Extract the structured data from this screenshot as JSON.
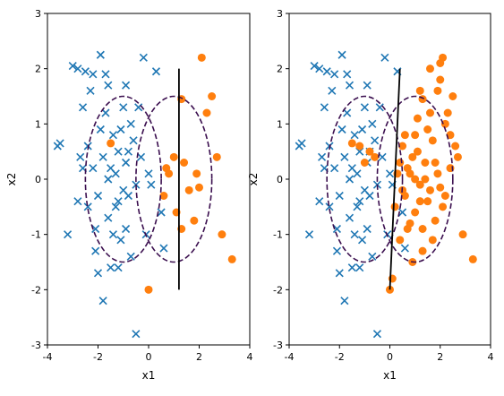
{
  "colors": {
    "class_x": "#1f77b4",
    "class_o": "#ff7f0e",
    "ellipse": "#3b0f4f",
    "boundary": "#000000"
  },
  "chart_data": [
    {
      "type": "scatter",
      "xlabel": "x1",
      "ylabel": "x2",
      "xlim": [
        -4,
        4
      ],
      "ylim": [
        -3,
        3
      ],
      "xticks": [
        "-4",
        "-2",
        "0",
        "2",
        "4"
      ],
      "yticks": [
        "-3",
        "-2",
        "-1",
        "0",
        "1",
        "2",
        "3"
      ],
      "series": [
        {
          "marker": "x",
          "points": [
            [
              -3.6,
              0.6
            ],
            [
              -3.5,
              0.65
            ],
            [
              -3.2,
              -1.0
            ],
            [
              -3.0,
              2.05
            ],
            [
              -2.8,
              2.0
            ],
            [
              -2.7,
              0.4
            ],
            [
              -2.6,
              0.2
            ],
            [
              -2.5,
              1.95
            ],
            [
              -2.4,
              -0.5
            ],
            [
              -2.3,
              1.6
            ],
            [
              -2.2,
              1.9
            ],
            [
              -2.1,
              -1.3
            ],
            [
              -2.0,
              -1.7
            ],
            [
              -1.9,
              2.25
            ],
            [
              -1.8,
              -2.2
            ],
            [
              -1.7,
              1.9
            ],
            [
              -1.6,
              1.7
            ],
            [
              -1.5,
              -1.6
            ],
            [
              -1.4,
              0.8
            ],
            [
              -1.3,
              0.1
            ],
            [
              -1.2,
              -0.4
            ],
            [
              -1.1,
              0.9
            ],
            [
              -1.0,
              -0.2
            ],
            [
              -0.9,
              -0.9
            ],
            [
              -0.8,
              0.5
            ],
            [
              -0.7,
              -1.4
            ],
            [
              -0.5,
              -2.8
            ],
            [
              -0.4,
              1.3
            ],
            [
              -0.2,
              2.2
            ],
            [
              -0.1,
              -1.0
            ],
            [
              0.1,
              -0.1
            ],
            [
              0.3,
              1.95
            ],
            [
              0.5,
              -0.6
            ],
            [
              0.6,
              -1.25
            ],
            [
              -2.2,
              0.2
            ],
            [
              -2.0,
              -0.3
            ],
            [
              -1.8,
              0.4
            ],
            [
              -1.6,
              -0.7
            ],
            [
              -1.5,
              0.2
            ],
            [
              -1.3,
              -0.5
            ],
            [
              -1.2,
              0.5
            ],
            [
              -1.1,
              -1.1
            ],
            [
              -0.9,
              0.3
            ],
            [
              -0.8,
              -0.3
            ],
            [
              -0.6,
              0.7
            ],
            [
              -0.5,
              -0.1
            ],
            [
              -1.7,
              1.2
            ],
            [
              -1.9,
              0.9
            ],
            [
              -2.6,
              1.3
            ],
            [
              -1.4,
              -1.0
            ],
            [
              -0.7,
              1.0
            ],
            [
              -1.0,
              1.3
            ],
            [
              -2.1,
              -0.9
            ],
            [
              -0.3,
              0.4
            ],
            [
              0.0,
              0.1
            ],
            [
              -2.4,
              0.6
            ],
            [
              -1.2,
              -1.6
            ],
            [
              -0.9,
              1.7
            ],
            [
              -2.8,
              -0.4
            ],
            [
              -1.6,
              0.0
            ]
          ]
        },
        {
          "marker": "o",
          "points": [
            [
              -1.5,
              0.65
            ],
            [
              0.0,
              -2.0
            ],
            [
              0.6,
              -0.3
            ],
            [
              0.8,
              0.1
            ],
            [
              1.0,
              0.4
            ],
            [
              1.1,
              -0.6
            ],
            [
              1.3,
              1.45
            ],
            [
              1.3,
              -0.9
            ],
            [
              1.4,
              0.3
            ],
            [
              1.6,
              -0.2
            ],
            [
              1.8,
              -0.75
            ],
            [
              1.9,
              0.1
            ],
            [
              2.0,
              -0.15
            ],
            [
              2.1,
              2.2
            ],
            [
              2.3,
              1.2
            ],
            [
              2.5,
              1.5
            ],
            [
              2.7,
              0.4
            ],
            [
              2.9,
              -1.0
            ],
            [
              3.3,
              -1.45
            ],
            [
              0.7,
              0.2
            ]
          ]
        }
      ],
      "ellipses": [
        {
          "center": [
            -1.0,
            0.0
          ],
          "rx": 1.5,
          "ry": 1.5
        },
        {
          "center": [
            1.0,
            0.0
          ],
          "rx": 1.5,
          "ry": 1.5
        }
      ],
      "boundary": [
        [
          1.2,
          -2.0
        ],
        [
          1.2,
          2.0
        ]
      ]
    },
    {
      "type": "scatter",
      "xlabel": "x1",
      "ylabel": "x2",
      "xlim": [
        -4,
        4
      ],
      "ylim": [
        -3,
        3
      ],
      "xticks": [
        "-4",
        "-2",
        "0",
        "2",
        "4"
      ],
      "yticks": [
        "-3",
        "-2",
        "-1",
        "0",
        "1",
        "2",
        "3"
      ],
      "series": [
        {
          "marker": "x",
          "points": [
            [
              -3.6,
              0.6
            ],
            [
              -3.5,
              0.65
            ],
            [
              -3.2,
              -1.0
            ],
            [
              -3.0,
              2.05
            ],
            [
              -2.8,
              2.0
            ],
            [
              -2.7,
              0.4
            ],
            [
              -2.6,
              0.2
            ],
            [
              -2.5,
              1.95
            ],
            [
              -2.4,
              -0.5
            ],
            [
              -2.3,
              1.6
            ],
            [
              -2.2,
              1.9
            ],
            [
              -2.1,
              -1.3
            ],
            [
              -2.0,
              -1.7
            ],
            [
              -1.9,
              2.25
            ],
            [
              -1.8,
              -2.2
            ],
            [
              -1.7,
              1.9
            ],
            [
              -1.6,
              1.7
            ],
            [
              -1.5,
              -1.6
            ],
            [
              -1.4,
              0.8
            ],
            [
              -1.3,
              0.1
            ],
            [
              -1.2,
              -0.4
            ],
            [
              -1.1,
              0.9
            ],
            [
              -1.0,
              -0.2
            ],
            [
              -0.9,
              -0.9
            ],
            [
              -0.8,
              0.5
            ],
            [
              -0.7,
              -1.4
            ],
            [
              -0.5,
              -2.8
            ],
            [
              -0.4,
              1.3
            ],
            [
              -0.2,
              2.2
            ],
            [
              -0.1,
              -1.0
            ],
            [
              0.1,
              -0.1
            ],
            [
              0.3,
              1.95
            ],
            [
              0.5,
              -0.6
            ],
            [
              0.6,
              -1.25
            ],
            [
              -2.2,
              0.2
            ],
            [
              -2.0,
              -0.3
            ],
            [
              -1.8,
              0.4
            ],
            [
              -1.6,
              -0.7
            ],
            [
              -1.5,
              0.2
            ],
            [
              -1.3,
              -0.5
            ],
            [
              -1.2,
              0.5
            ],
            [
              -1.1,
              -1.1
            ],
            [
              -0.9,
              0.3
            ],
            [
              -0.8,
              -0.3
            ],
            [
              -0.6,
              0.7
            ],
            [
              -0.5,
              -0.1
            ],
            [
              -1.7,
              1.2
            ],
            [
              -1.9,
              0.9
            ],
            [
              -2.6,
              1.3
            ],
            [
              -1.4,
              -1.0
            ],
            [
              -0.7,
              1.0
            ],
            [
              -1.0,
              1.3
            ],
            [
              -2.1,
              -0.9
            ],
            [
              -0.3,
              0.4
            ],
            [
              0.0,
              0.1
            ],
            [
              -2.4,
              0.6
            ],
            [
              -1.2,
              -1.6
            ],
            [
              -0.9,
              1.7
            ],
            [
              -2.8,
              -0.4
            ],
            [
              -1.6,
              0.0
            ]
          ]
        },
        {
          "marker": "o",
          "points": [
            [
              -1.5,
              0.65
            ],
            [
              -1.2,
              0.6
            ],
            [
              -1.0,
              0.3
            ],
            [
              -0.8,
              0.5
            ],
            [
              -0.6,
              0.4
            ],
            [
              0.0,
              -2.0
            ],
            [
              0.1,
              -1.8
            ],
            [
              0.2,
              -0.5
            ],
            [
              0.3,
              0.1
            ],
            [
              0.4,
              0.3
            ],
            [
              0.5,
              -0.2
            ],
            [
              0.6,
              -0.3
            ],
            [
              0.7,
              0.2
            ],
            [
              0.8,
              0.1
            ],
            [
              0.9,
              0.4
            ],
            [
              1.0,
              -0.6
            ],
            [
              1.0,
              0.0
            ],
            [
              1.1,
              0.5
            ],
            [
              1.2,
              -0.1
            ],
            [
              1.3,
              1.45
            ],
            [
              1.3,
              -0.9
            ],
            [
              1.4,
              0.3
            ],
            [
              1.5,
              -0.4
            ],
            [
              1.6,
              -0.2
            ],
            [
              1.7,
              0.7
            ],
            [
              1.8,
              -0.75
            ],
            [
              1.9,
              0.1
            ],
            [
              2.0,
              -0.15
            ],
            [
              2.0,
              1.8
            ],
            [
              2.1,
              2.2
            ],
            [
              2.2,
              1.0
            ],
            [
              2.3,
              1.2
            ],
            [
              2.4,
              0.2
            ],
            [
              2.5,
              1.5
            ],
            [
              2.6,
              0.6
            ],
            [
              2.7,
              0.4
            ],
            [
              2.9,
              -1.0
            ],
            [
              3.3,
              -1.45
            ],
            [
              0.6,
              0.8
            ],
            [
              0.8,
              -0.8
            ],
            [
              1.1,
              1.1
            ],
            [
              1.3,
              -1.3
            ],
            [
              1.5,
              0.9
            ],
            [
              1.7,
              -1.1
            ],
            [
              1.9,
              1.6
            ],
            [
              2.1,
              -0.5
            ],
            [
              0.9,
              -1.5
            ],
            [
              1.2,
              1.6
            ],
            [
              1.6,
              2.0
            ],
            [
              2.0,
              2.1
            ],
            [
              0.5,
              0.6
            ],
            [
              0.7,
              -0.9
            ],
            [
              1.4,
              0.0
            ],
            [
              1.8,
              0.3
            ],
            [
              2.2,
              -0.3
            ],
            [
              1.0,
              0.8
            ],
            [
              1.2,
              -0.4
            ],
            [
              0.4,
              -1.1
            ],
            [
              1.6,
              1.2
            ],
            [
              2.4,
              0.8
            ]
          ]
        }
      ],
      "ellipses": [
        {
          "center": [
            -1.0,
            0.0
          ],
          "rx": 1.5,
          "ry": 1.5
        },
        {
          "center": [
            1.0,
            0.0
          ],
          "rx": 1.5,
          "ry": 1.5
        }
      ],
      "boundary": [
        [
          0.0,
          -2.0
        ],
        [
          0.4,
          2.0
        ]
      ]
    }
  ]
}
